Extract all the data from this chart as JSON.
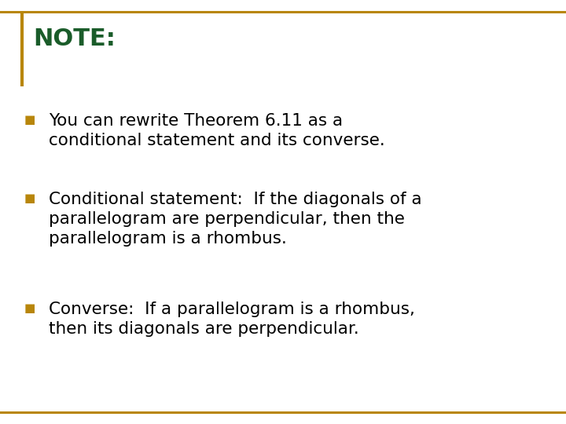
{
  "background_color": "#ffffff",
  "border_color": "#b8860b",
  "left_bar_color": "#b8860b",
  "title": "NOTE:",
  "title_color": "#1a5c2a",
  "title_fontsize": 22,
  "bullet_color": "#b8860b",
  "bullet_char": "■",
  "body_color": "#000000",
  "body_fontsize": 15.5,
  "bullets": [
    "You can rewrite Theorem 6.11 as a\nconditional statement and its converse.",
    "Conditional statement:  If the diagonals of a\nparallelogram are perpendicular, then the\nparallelogram is a rhombus.",
    "Converse:  If a parallelogram is a rhombus,\nthen its diagonals are perpendicular."
  ]
}
